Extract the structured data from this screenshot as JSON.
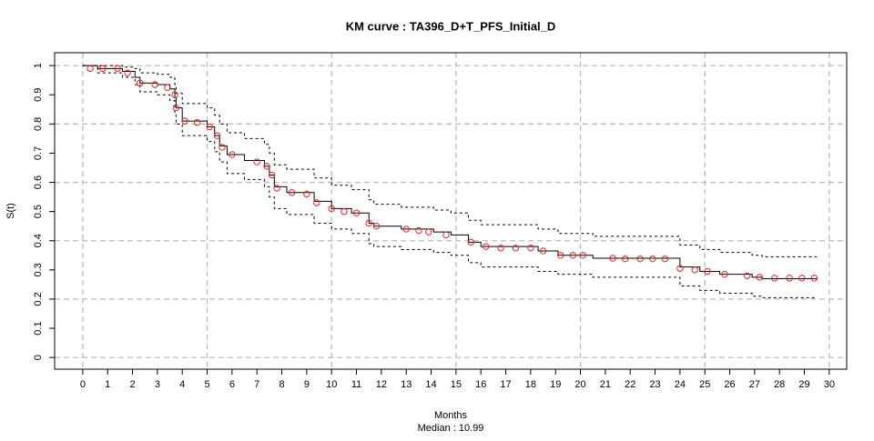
{
  "chart_data": {
    "type": "km",
    "title": "KM curve : TA396_D+T_PFS_Initial_D",
    "subtitle": "Median : 10.99",
    "xlabel": "Months",
    "ylabel": "S(t)",
    "xlim": [
      -1.13,
      30.7
    ],
    "ylim": [
      -0.04,
      1.044
    ],
    "xticks": [
      0,
      1,
      2,
      3,
      4,
      5,
      6,
      7,
      8,
      9,
      10,
      11,
      12,
      13,
      14,
      15,
      16,
      17,
      18,
      19,
      20,
      21,
      22,
      23,
      24,
      25,
      26,
      27,
      28,
      29,
      30
    ],
    "yticks": [
      0,
      0.1,
      0.2,
      0.3,
      0.4,
      0.5,
      0.6,
      0.7,
      0.8,
      0.9,
      1
    ],
    "x_grid": [
      0,
      5,
      10,
      15,
      20,
      25,
      30
    ],
    "y_grid": [
      0,
      0.2,
      0.4,
      0.6,
      0.8,
      1
    ],
    "x": [
      0,
      0.6,
      1.6,
      2.1,
      2.3,
      3.0,
      3.5,
      3.7,
      3.75,
      4.0,
      5.0,
      5.3,
      5.5,
      5.8,
      6.5,
      7.3,
      7.5,
      7.7,
      8.2,
      9.3,
      10.0,
      10.8,
      11.5,
      11.7,
      12.8,
      14.1,
      14.8,
      15.5,
      16.0,
      18.3,
      19.1,
      20.5,
      24.0,
      24.8,
      25.6,
      26.9,
      27.3,
      29.5
    ],
    "series": [
      {
        "color": "#000000",
        "dashed": false,
        "values": [
          1,
          0.99,
          0.98,
          0.96,
          0.94,
          0.935,
          0.92,
          0.89,
          0.855,
          0.81,
          0.79,
          0.76,
          0.725,
          0.695,
          0.675,
          0.655,
          0.625,
          0.585,
          0.565,
          0.535,
          0.51,
          0.495,
          0.46,
          0.45,
          0.44,
          0.43,
          0.42,
          0.395,
          0.38,
          0.365,
          0.35,
          0.34,
          0.31,
          0.295,
          0.285,
          0.275,
          0.27,
          0.27
        ]
      },
      {
        "color": "#000000",
        "dashed": true,
        "values": [
          1,
          1,
          0.995,
          0.99,
          0.975,
          0.97,
          0.96,
          0.935,
          0.905,
          0.87,
          0.855,
          0.83,
          0.8,
          0.77,
          0.75,
          0.73,
          0.7,
          0.66,
          0.645,
          0.615,
          0.59,
          0.575,
          0.54,
          0.525,
          0.515,
          0.505,
          0.495,
          0.47,
          0.455,
          0.44,
          0.425,
          0.415,
          0.385,
          0.37,
          0.36,
          0.35,
          0.345,
          0.345
        ]
      },
      {
        "color": "#000000",
        "dashed": true,
        "values": [
          1,
          0.975,
          0.96,
          0.935,
          0.91,
          0.9,
          0.88,
          0.84,
          0.8,
          0.76,
          0.74,
          0.705,
          0.67,
          0.63,
          0.61,
          0.585,
          0.55,
          0.51,
          0.49,
          0.46,
          0.44,
          0.425,
          0.39,
          0.38,
          0.37,
          0.36,
          0.35,
          0.325,
          0.31,
          0.295,
          0.285,
          0.275,
          0.245,
          0.23,
          0.22,
          0.21,
          0.205,
          0.205
        ]
      }
    ],
    "censored": {
      "color": "#e8251f",
      "x": [
        0.3,
        0.8,
        1.4,
        1.8,
        2.3,
        2.9,
        3.4,
        3.7,
        3.75,
        4.1,
        4.6,
        5.1,
        5.4,
        5.6,
        6.0,
        7.0,
        7.4,
        7.6,
        7.8,
        8.4,
        9.0,
        9.4,
        10.0,
        10.5,
        11.0,
        11.5,
        11.8,
        13.0,
        13.5,
        13.9,
        14.6,
        15.6,
        16.2,
        16.8,
        17.4,
        18.0,
        18.5,
        19.2,
        19.7,
        20.1,
        21.3,
        21.8,
        22.4,
        22.9,
        23.4,
        24.0,
        24.6,
        25.1,
        25.8,
        26.7,
        27.2,
        27.8,
        28.4,
        28.9,
        29.4
      ],
      "values": [
        0.99,
        0.99,
        0.99,
        0.975,
        0.94,
        0.935,
        0.925,
        0.9,
        0.855,
        0.81,
        0.805,
        0.79,
        0.76,
        0.72,
        0.695,
        0.67,
        0.655,
        0.625,
        0.58,
        0.565,
        0.56,
        0.53,
        0.51,
        0.5,
        0.495,
        0.46,
        0.45,
        0.44,
        0.435,
        0.43,
        0.42,
        0.395,
        0.38,
        0.375,
        0.375,
        0.375,
        0.365,
        0.35,
        0.35,
        0.35,
        0.34,
        0.338,
        0.338,
        0.338,
        0.338,
        0.305,
        0.3,
        0.295,
        0.285,
        0.28,
        0.275,
        0.272,
        0.272,
        0.272,
        0.272
      ]
    }
  }
}
